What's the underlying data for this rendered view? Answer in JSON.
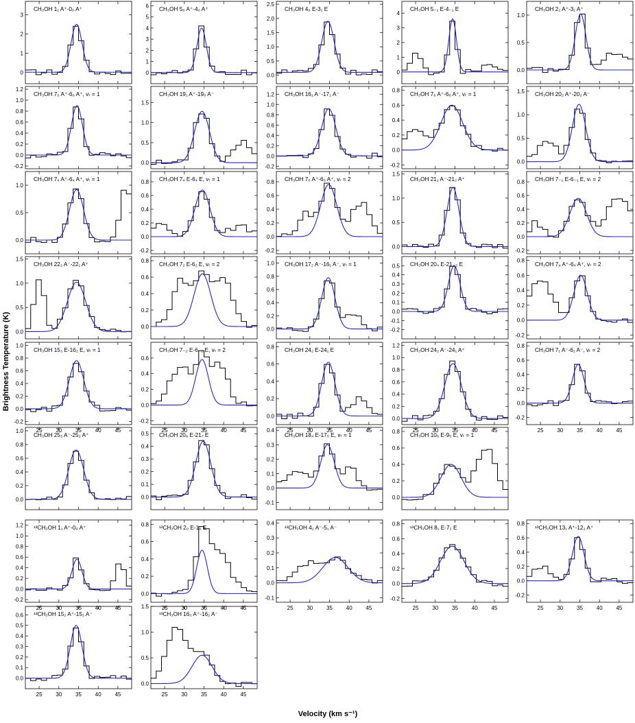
{
  "figure": {
    "ylabel": "Brightness Temperature (K)",
    "xlabel": "Velocity (km s⁻¹)",
    "x_ticks": [
      25,
      30,
      35,
      40,
      45
    ]
  },
  "colors": {
    "observed": "#000000",
    "fit": "#1f22e0"
  },
  "chart_data": [
    {
      "type": "line",
      "title": "CH₃OH 1₁ A⁺-0₀ A⁺",
      "xlim": [
        21.5,
        48.5
      ],
      "ylim": [
        -0.6,
        3.7
      ],
      "yticks": [
        0,
        1,
        2,
        3
      ],
      "center": 34.5,
      "fwhm": 3.3,
      "peak": 2.5,
      "base": 0.0,
      "emission": []
    },
    {
      "type": "line",
      "title": "CH₃OH 5₀ A⁺-4₀ A⁺",
      "xlim": [
        21.5,
        48.5
      ],
      "ylim": [
        -1.0,
        6.4
      ],
      "yticks": [
        0,
        1,
        2,
        3,
        4,
        5,
        6
      ],
      "center": 34.4,
      "fwhm": 2.8,
      "peak": 4.0,
      "base": 0.0,
      "emission": []
    },
    {
      "type": "line",
      "title": "CH₃OH 4₀ E-3₁ E",
      "xlim": [
        21.5,
        48.5
      ],
      "ylim": [
        -0.3,
        2.6
      ],
      "yticks": [
        0.0,
        0.5,
        1.0,
        1.5,
        2.0,
        2.5
      ],
      "center": 34.6,
      "fwhm": 3.7,
      "peak": 1.8,
      "base": 0.1,
      "emission": []
    },
    {
      "type": "line",
      "title": "CH₃OH 5₋₁ E-4₋₁ E",
      "xlim": [
        21.5,
        48.5
      ],
      "ylim": [
        -0.8,
        4.8
      ],
      "yticks": [
        0,
        1,
        2,
        3,
        4
      ],
      "center": 34.4,
      "fwhm": 2.3,
      "peak": 3.6,
      "base": 0.0,
      "emission": [
        [
          25,
          1.2,
          3
        ],
        [
          44,
          0.6,
          3
        ]
      ]
    },
    {
      "type": "line",
      "title": "CH₃OH 2₂ A⁺-3₁ A⁺",
      "xlim": [
        21.5,
        48.5
      ],
      "ylim": [
        -0.25,
        1.25
      ],
      "yticks": [
        0.0,
        0.5,
        1.0
      ],
      "center": 35.2,
      "fwhm": 3.2,
      "peak": 1.02,
      "base": 0.0,
      "emission": [
        [
          44,
          0.3,
          8
        ]
      ]
    },
    {
      "type": "line",
      "title": "CH₃OH 7₀ A⁺-6₀ A⁺, vₜ = 1",
      "xlim": [
        21.5,
        48.5
      ],
      "ylim": [
        -0.25,
        1.25
      ],
      "yticks": [
        -0.2,
        0.0,
        0.2,
        0.4,
        0.6,
        0.8,
        1.0,
        1.2
      ],
      "center": 34.6,
      "fwhm": 3.3,
      "peak": 0.9,
      "base": 0.0,
      "emission": []
    },
    {
      "type": "line",
      "title": "CH₃OH 19₁ A⁺-19₀ A⁻",
      "xlim": [
        21.5,
        48.5
      ],
      "ylim": [
        -0.15,
        1.9
      ],
      "yticks": [
        0.0,
        0.5,
        1.0,
        1.5
      ],
      "center": 34.5,
      "fwhm": 4.5,
      "peak": 1.28,
      "base": 0.0,
      "emission": [
        [
          45,
          0.5,
          6
        ]
      ]
    },
    {
      "type": "line",
      "title": "CH₃OH 16₁ A⁻-17₂ A⁻",
      "xlim": [
        21.5,
        48.5
      ],
      "ylim": [
        -0.25,
        1.35
      ],
      "yticks": [
        -0.2,
        0.0,
        0.2,
        0.4,
        0.6,
        0.8,
        1.0,
        1.2
      ],
      "center": 34.8,
      "fwhm": 4.2,
      "peak": 0.92,
      "base": 0.0,
      "emission": []
    },
    {
      "type": "line",
      "title": "CH₃OH 7₆ A⁺-6₆ A⁺, vₜ = 1",
      "xlim": [
        21.5,
        48.5
      ],
      "ylim": [
        -0.25,
        0.85
      ],
      "yticks": [
        -0.2,
        0.0,
        0.2,
        0.4,
        0.6,
        0.8
      ],
      "center": 34.2,
      "fwhm": 6.5,
      "peak": 0.6,
      "base": 0.0,
      "emission": [
        [
          25,
          0.25,
          6
        ]
      ]
    },
    {
      "type": "line",
      "title": "CH₃OH 20₂ A⁺-20₂ A⁻",
      "xlim": [
        21.5,
        48.5
      ],
      "ylim": [
        -0.15,
        1.6
      ],
      "yticks": [
        0.0,
        0.5,
        1.0,
        1.5
      ],
      "center": 34.8,
      "fwhm": 4.0,
      "peak": 1.22,
      "base": 0.0,
      "emission": [
        [
          27,
          0.4,
          6
        ]
      ]
    },
    {
      "type": "line",
      "title": "CH₃OH 7₄ A⁺-6₄ A⁺, vₜ = 1",
      "xlim": [
        21.5,
        48.5
      ],
      "ylim": [
        -0.25,
        1.25
      ],
      "yticks": [
        0.0,
        0.5,
        1.0
      ],
      "center": 34.5,
      "fwhm": 4.2,
      "peak": 0.92,
      "base": 0.0,
      "emission": [
        [
          47,
          1.0,
          3
        ]
      ]
    },
    {
      "type": "line",
      "title": "CH₃OH 7₄ E-6₄ E, vₜ = 1",
      "xlim": [
        21.5,
        48.5
      ],
      "ylim": [
        -0.25,
        0.95
      ],
      "yticks": [
        -0.2,
        0.0,
        0.2,
        0.4,
        0.6,
        0.8
      ],
      "center": 34.6,
      "fwhm": 4.5,
      "peak": 0.68,
      "base": 0.0,
      "emission": [
        [
          24,
          0.2,
          5
        ],
        [
          44,
          0.15,
          6
        ]
      ]
    },
    {
      "type": "line",
      "title": "CH₃OH 7₀ A⁺-6₀ A⁺, vₜ = 2",
      "xlim": [
        21.5,
        48.5
      ],
      "ylim": [
        -0.25,
        0.95
      ],
      "yticks": [
        -0.2,
        0.0,
        0.2,
        0.4,
        0.6,
        0.8
      ],
      "center": 34.8,
      "fwhm": 4.8,
      "peak": 0.76,
      "base": 0.0,
      "emission": [
        [
          29,
          0.35,
          4
        ],
        [
          43,
          0.5,
          6
        ]
      ]
    },
    {
      "type": "line",
      "title": "CH₃OH 21₁ A⁻-21₂ A⁺",
      "xlim": [
        21.5,
        48.5
      ],
      "ylim": [
        -0.15,
        1.55
      ],
      "yticks": [
        0.0,
        0.5,
        1.0,
        1.5
      ],
      "center": 34.5,
      "fwhm": 3.6,
      "peak": 1.22,
      "base": 0.0,
      "emission": []
    },
    {
      "type": "line",
      "title": "CH₃OH 7₋₁ E-6₋₁ E, vₜ = 2",
      "xlim": [
        21.5,
        48.5
      ],
      "ylim": [
        -0.25,
        0.95
      ],
      "yticks": [
        -0.2,
        0.0,
        0.2,
        0.4,
        0.6,
        0.8
      ],
      "center": 34.6,
      "fwhm": 5.0,
      "peak": 0.56,
      "base": 0.0,
      "emission": [
        [
          45,
          0.55,
          8
        ],
        [
          24,
          0.2,
          4
        ]
      ]
    },
    {
      "type": "line",
      "title": "CH₃OH 22₂ A⁻-22₁ A⁺",
      "xlim": [
        21.5,
        48.5
      ],
      "ylim": [
        -0.15,
        1.55
      ],
      "yticks": [
        0.0,
        0.5,
        1.0,
        1.5
      ],
      "center": 34.5,
      "fwhm": 5.5,
      "peak": 1.02,
      "base": 0.0,
      "emission": [
        [
          25,
          1.1,
          3
        ]
      ]
    },
    {
      "type": "line",
      "title": "CH₃OH 7₂ E-6₂ E, vₜ = 2",
      "xlim": [
        21.5,
        48.5
      ],
      "ylim": [
        -0.15,
        0.85
      ],
      "yticks": [
        0.0,
        0.2,
        0.4,
        0.6,
        0.8
      ],
      "center": 34.6,
      "fwhm": 5.0,
      "peak": 0.64,
      "base": 0.0,
      "emission": [
        [
          29,
          0.55,
          5
        ],
        [
          40,
          0.6,
          5
        ]
      ]
    },
    {
      "type": "line",
      "title": "CH₃OH 17₂ A⁻-16₁ A⁻, vₜ = 1",
      "xlim": [
        21.5,
        48.5
      ],
      "ylim": [
        -0.15,
        1.1
      ],
      "yticks": [
        0.0,
        0.2,
        0.4,
        0.6,
        0.8,
        1.0
      ],
      "center": 34.7,
      "fwhm": 4.0,
      "peak": 0.78,
      "base": 0.0,
      "emission": [
        [
          41,
          0.25,
          5
        ]
      ]
    },
    {
      "type": "line",
      "title": "CH₃OH 20₄ E-21₋₃ E",
      "xlim": [
        21.5,
        48.5
      ],
      "ylim": [
        -0.3,
        0.6
      ],
      "yticks": [
        -0.2,
        -0.1,
        0.0,
        0.1,
        0.2,
        0.3,
        0.4,
        0.5
      ],
      "center": 34.8,
      "fwhm": 3.5,
      "peak": 0.5,
      "base": 0.0,
      "emission": []
    },
    {
      "type": "line",
      "title": "CH₃OH 7₄ A⁺-6₄ A⁺, vₜ = 2",
      "xlim": [
        21.5,
        48.5
      ],
      "ylim": [
        -0.25,
        0.85
      ],
      "yticks": [
        -0.2,
        0.0,
        0.2,
        0.4,
        0.6,
        0.8
      ],
      "center": 35.2,
      "fwhm": 4.0,
      "peak": 0.6,
      "base": 0.0,
      "emission": [
        [
          25,
          0.55,
          7
        ]
      ]
    },
    {
      "type": "line",
      "title": "CH₃OH 15₃ E-16₂ E, vₜ = 1",
      "xlim": [
        21.5,
        48.5
      ],
      "ylim": [
        -0.25,
        1.05
      ],
      "yticks": [
        -0.2,
        0.0,
        0.2,
        0.4,
        0.6,
        0.8,
        1.0
      ],
      "center": 34.5,
      "fwhm": 4.3,
      "peak": 0.76,
      "base": 0.0,
      "emission": []
    },
    {
      "type": "line",
      "title": "CH₃OH 7₋₂ E-6₋₂ E, vₜ = 2",
      "xlim": [
        21.5,
        48.5
      ],
      "ylim": [
        -0.25,
        0.8
      ],
      "yticks": [
        -0.2,
        0.0,
        0.2,
        0.4,
        0.6
      ],
      "center": 34.5,
      "fwhm": 3.8,
      "peak": 0.58,
      "base": 0.0,
      "emission": [
        [
          29,
          0.5,
          6
        ],
        [
          39,
          0.5,
          5
        ]
      ]
    },
    {
      "type": "line",
      "title": "CH₃OH 24₂ E-24₁ E",
      "xlim": [
        21.5,
        48.5
      ],
      "ylim": [
        -0.1,
        0.85
      ],
      "yticks": [
        0.0,
        0.2,
        0.4,
        0.6,
        0.8
      ],
      "center": 34.7,
      "fwhm": 4.0,
      "peak": 0.62,
      "base": 0.0,
      "emission": [
        [
          43,
          0.2,
          5
        ]
      ]
    },
    {
      "type": "line",
      "title": "CH₃OH 24₂ A⁻-24₁ A⁺",
      "xlim": [
        21.5,
        48.5
      ],
      "ylim": [
        -0.1,
        1.25
      ],
      "yticks": [
        0.0,
        0.2,
        0.4,
        0.6,
        0.8,
        1.0,
        1.2
      ],
      "center": 34.5,
      "fwhm": 5.0,
      "peak": 0.9,
      "base": 0.0,
      "emission": []
    },
    {
      "type": "line",
      "title": "CH₃OH 7₁ A⁻-6₁ A⁻, vₜ = 2",
      "xlim": [
        21.5,
        48.5
      ],
      "ylim": [
        -0.3,
        0.85
      ],
      "yticks": [
        -0.2,
        0.0,
        0.2,
        0.4,
        0.6,
        0.8
      ],
      "center": 34.6,
      "fwhm": 3.5,
      "peak": 0.54,
      "base": 0.0,
      "emission": []
    },
    {
      "type": "line",
      "title": "CH₃OH 25₃ A⁻-25₂ A⁺",
      "xlim": [
        21.5,
        48.5
      ],
      "ylim": [
        -0.15,
        1.05
      ],
      "yticks": [
        0.0,
        0.2,
        0.4,
        0.6,
        0.8,
        1.0
      ],
      "center": 34.4,
      "fwhm": 4.5,
      "peak": 0.72,
      "base": 0.0,
      "emission": []
    },
    {
      "type": "line",
      "title": "CH₃OH 20₈ E-21₇ E",
      "xlim": [
        21.5,
        48.5
      ],
      "ylim": [
        -0.1,
        0.55
      ],
      "yticks": [
        0.0,
        0.1,
        0.2,
        0.3,
        0.4,
        0.5
      ],
      "center": 34.8,
      "fwhm": 4.5,
      "peak": 0.44,
      "base": 0.0,
      "emission": []
    },
    {
      "type": "line",
      "title": "CH₃OH 18₄ E-17₅ E, vₜ = 1",
      "xlim": [
        21.5,
        48.5
      ],
      "ylim": [
        -0.15,
        0.42
      ],
      "yticks": [
        -0.1,
        0.0,
        0.1,
        0.2,
        0.3,
        0.4
      ],
      "center": 34.5,
      "fwhm": 4.0,
      "peak": 0.3,
      "base": 0.0,
      "emission": [
        [
          27,
          0.1,
          7
        ],
        [
          40,
          0.15,
          4
        ]
      ]
    },
    {
      "type": "line",
      "title": "CH₃OH 10₆ E-9₅ E, vₜ = 1",
      "xlim": [
        21.5,
        48.5
      ],
      "ylim": [
        -0.15,
        0.85
      ],
      "yticks": [
        0.0,
        0.2,
        0.4,
        0.6,
        0.8
      ],
      "center": 34.0,
      "fwhm": 6.0,
      "peak": 0.4,
      "base": 0.0,
      "emission": [
        [
          43,
          0.6,
          6
        ]
      ]
    },
    {
      "type": "line",
      "title": "¹³CH₃OH 1₁ A⁺-0₀ A⁺",
      "xlim": [
        21.5,
        48.5
      ],
      "ylim": [
        -0.25,
        1.3
      ],
      "yticks": [
        -0.2,
        0.0,
        0.2,
        0.4,
        0.6,
        0.8,
        1.0,
        1.2
      ],
      "center": 34.6,
      "fwhm": 3.0,
      "peak": 0.56,
      "base": 0.0,
      "emission": [
        [
          45.5,
          0.5,
          2.5
        ]
      ]
    },
    {
      "type": "line",
      "title": "¹³CH₃OH 2₀ E-1₀ E",
      "xlim": [
        21.5,
        48.5
      ],
      "ylim": [
        -0.1,
        0.85
      ],
      "yticks": [
        0.0,
        0.2,
        0.4,
        0.6,
        0.8
      ],
      "center": 34.5,
      "fwhm": 3.2,
      "peak": 0.5,
      "base": 0.0,
      "emission": [
        [
          38,
          0.5,
          8
        ]
      ]
    },
    {
      "type": "line",
      "title": "¹³CH₃OH 4₂ A⁻-5₁ A⁻",
      "xlim": [
        21.5,
        48.5
      ],
      "ylim": [
        -0.13,
        0.42
      ],
      "yticks": [
        -0.1,
        0.0,
        0.1,
        0.2,
        0.3,
        0.4
      ],
      "center": 36.5,
      "fwhm": 7.5,
      "peak": 0.17,
      "base": 0.0,
      "emission": [
        [
          29,
          0.12,
          6
        ]
      ]
    },
    {
      "type": "line",
      "title": "¹³CH₃OH 8₁ E-7₂ E",
      "xlim": [
        21.5,
        48.5
      ],
      "ylim": [
        -0.25,
        0.85
      ],
      "yticks": [
        -0.2,
        0.0,
        0.2,
        0.4,
        0.6,
        0.8
      ],
      "center": 34.3,
      "fwhm": 7.0,
      "peak": 0.5,
      "base": 0.0,
      "emission": []
    },
    {
      "type": "line",
      "title": "¹³CH₃OH 13₁ A⁺-12₂ A⁺",
      "xlim": [
        21.5,
        48.5
      ],
      "ylim": [
        -0.3,
        0.85
      ],
      "yticks": [
        -0.2,
        0.0,
        0.2,
        0.4,
        0.6,
        0.8
      ],
      "center": 34.6,
      "fwhm": 3.5,
      "peak": 0.62,
      "base": 0.0,
      "emission": [
        [
          25,
          0.2,
          5
        ]
      ]
    },
    {
      "type": "line",
      "title": "¹³CH₃OH 15₂ A⁺-15₂ A⁻",
      "xlim": [
        21.5,
        48.5
      ],
      "ylim": [
        -0.1,
        0.68
      ],
      "yticks": [
        0.0,
        0.1,
        0.2,
        0.3,
        0.4,
        0.5,
        0.6
      ],
      "center": 34.4,
      "fwhm": 3.5,
      "peak": 0.5,
      "base": 0.0,
      "emission": []
    },
    {
      "type": "line",
      "title": "¹³CH₃OH 16₃ A⁺-16₂ A⁻",
      "xlim": [
        21.5,
        48.5
      ],
      "ylim": [
        -0.1,
        1.5
      ],
      "yticks": [
        0.0,
        0.5,
        1.0,
        1.5
      ],
      "center": 34.5,
      "fwhm": 6.0,
      "peak": 0.55,
      "base": 0.0,
      "emission": [
        [
          28,
          1.1,
          6
        ]
      ]
    }
  ]
}
